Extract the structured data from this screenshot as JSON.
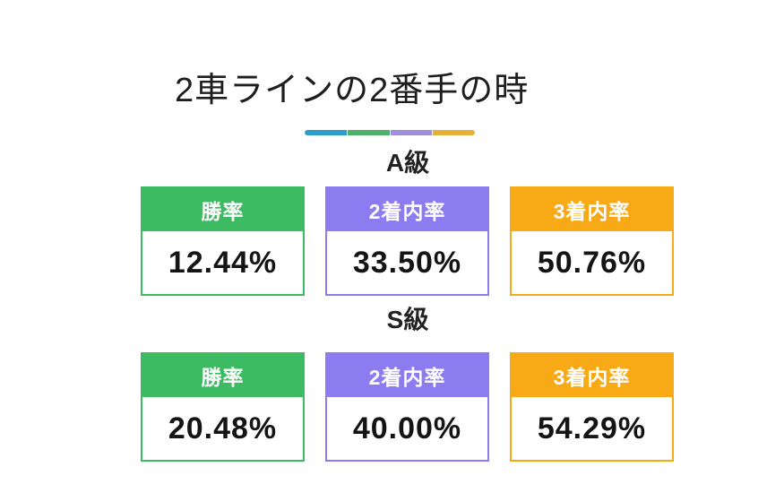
{
  "title": "2車ラインの2番手の時",
  "decor_bar": {
    "colors": [
      "#2c9cc9",
      "#4fb06a",
      "#9f8fdc",
      "#e7af35"
    ]
  },
  "stat_colors": {
    "win_rate": "#3cbb62",
    "top2_rate": "#8c7cf0",
    "top3_rate": "#f8a916"
  },
  "sections": [
    {
      "heading": "A級",
      "stats": [
        {
          "label": "勝率",
          "value": "12.44%"
        },
        {
          "label": "2着内率",
          "value": "33.50%"
        },
        {
          "label": "3着内率",
          "value": "50.76%"
        }
      ]
    },
    {
      "heading": "S級",
      "stats": [
        {
          "label": "勝率",
          "value": "20.48%"
        },
        {
          "label": "2着内率",
          "value": "40.00%"
        },
        {
          "label": "3着内率",
          "value": "54.29%"
        }
      ]
    }
  ],
  "chart_data": {
    "type": "table",
    "title": "2車ラインの2番手の時",
    "categories": [
      "勝率",
      "2着内率",
      "3着内率"
    ],
    "series": [
      {
        "name": "A級",
        "values": [
          12.44,
          33.5,
          50.76
        ]
      },
      {
        "name": "S級",
        "values": [
          20.48,
          40.0,
          54.29
        ]
      }
    ],
    "unit": "%"
  }
}
